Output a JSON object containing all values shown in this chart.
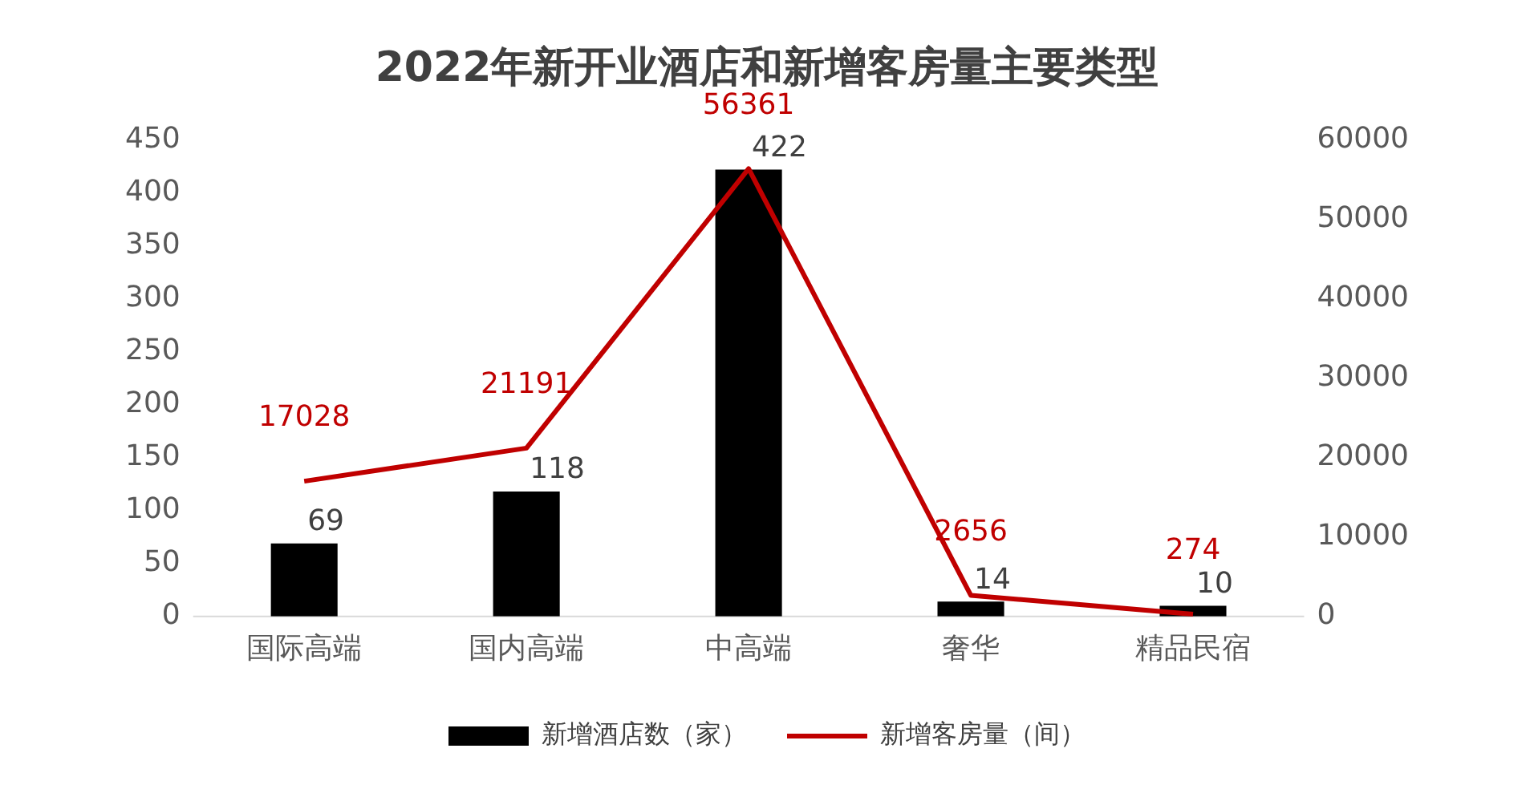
{
  "chart_data": {
    "type": "bar",
    "title": "2022年新开业酒店和新增客房量主要类型",
    "categories": [
      "国际高端",
      "国内高端",
      "中高端",
      "奢华",
      "精品民宿"
    ],
    "series": [
      {
        "name": "新增酒店数（家）",
        "type": "bar",
        "color": "#000000",
        "values": [
          69,
          118,
          422,
          14,
          10
        ]
      },
      {
        "name": "新增客房量（间）",
        "type": "line",
        "axis": "y2",
        "color": "#c00000",
        "values": [
          17028,
          21191,
          56361,
          2656,
          274
        ]
      }
    ],
    "ylim": [
      0,
      450
    ],
    "yticks": [
      0,
      50,
      100,
      150,
      200,
      250,
      300,
      350,
      400,
      450
    ],
    "y2lim": [
      0,
      60000
    ],
    "y2ticks": [
      0,
      10000,
      20000,
      30000,
      40000,
      50000,
      60000
    ],
    "data_labels": true,
    "legend": "bottom",
    "grid": false,
    "marker": "none"
  }
}
